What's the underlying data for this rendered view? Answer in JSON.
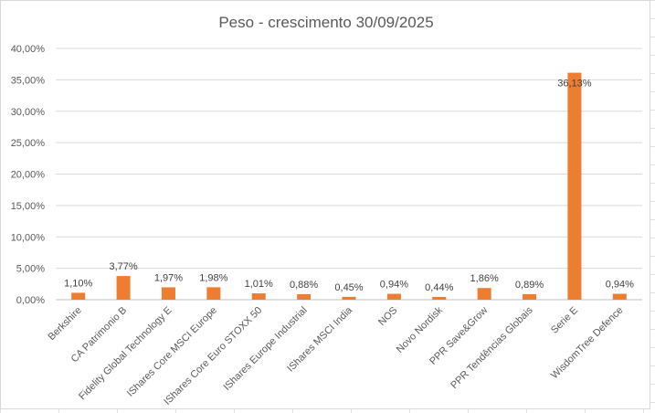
{
  "chart_data": {
    "type": "bar",
    "title": "Peso - crescimento 30/09/2025",
    "xlabel": "",
    "ylabel": "",
    "categories": [
      "Berkshire",
      "CA Patrimonio B",
      "Fidelity Global Technology E",
      "IShares Core MSCI Europe",
      "IShares Core Euro STOXX 50",
      "IShares Europe Industrial",
      "IShares MSCI India",
      "NOS",
      "Novo Nordisk",
      "PPR Save&Grow",
      "PPR Tendências Globais",
      "Serie E",
      "WisdomTree Defence"
    ],
    "values": [
      1.1,
      3.77,
      1.97,
      1.98,
      1.01,
      0.88,
      0.45,
      0.94,
      0.44,
      1.86,
      0.89,
      36.13,
      0.94
    ],
    "data_labels": [
      "1,10%",
      "3,77%",
      "1,97%",
      "1,98%",
      "1,01%",
      "0,88%",
      "0,45%",
      "0,94%",
      "0,44%",
      "1,86%",
      "0,89%",
      "36,13%",
      "0,94%"
    ],
    "ylim": [
      0,
      40
    ],
    "yticks": [
      "0,00%",
      "5,00%",
      "10,00%",
      "15,00%",
      "20,00%",
      "25,00%",
      "30,00%",
      "35,00%",
      "40,00%"
    ],
    "grid": true,
    "legend": "none",
    "bar_color": "#ED7D31"
  }
}
